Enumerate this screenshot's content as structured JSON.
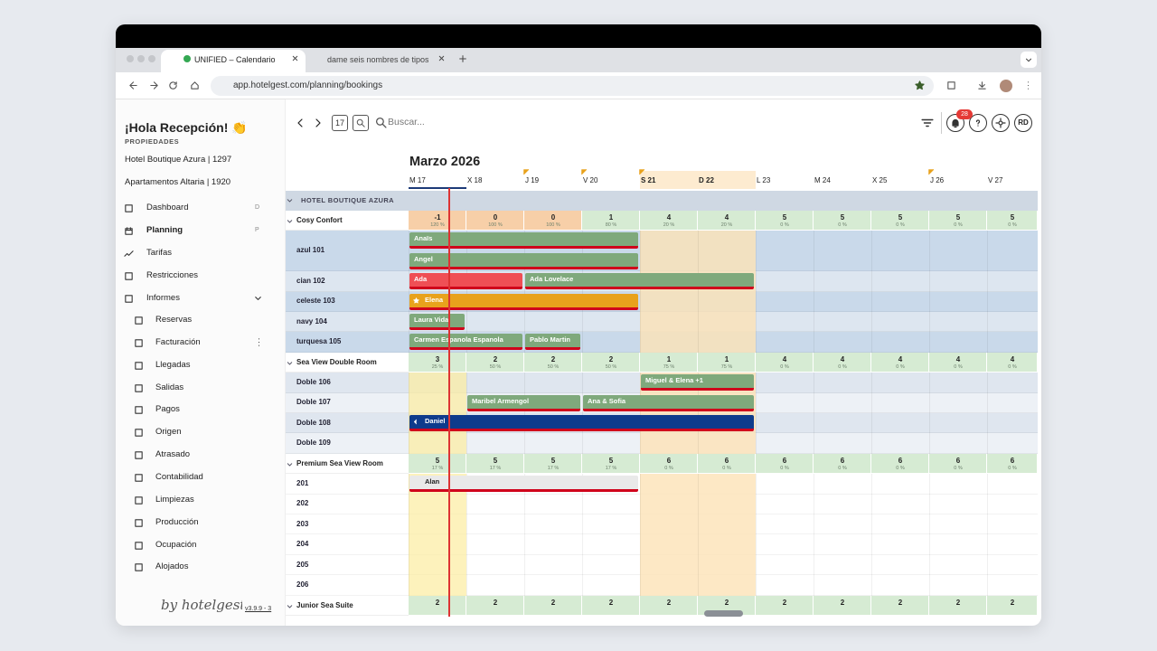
{
  "browser": {
    "tabs": [
      "UNIFIED – Calendario",
      "dame seis nombres de tipos"
    ],
    "url": "app.hotelgest.com/planning/bookings"
  },
  "sidebar": {
    "greeting": "¡Hola Recepción! 👏",
    "section": "PROPIEDADES",
    "properties": [
      "Hotel Boutique Azura | 1297",
      "Apartamentos Altaria | 1920"
    ],
    "nav": [
      {
        "label": "Dashboard",
        "shortcut": "D"
      },
      {
        "label": "Planning",
        "shortcut": "P"
      },
      {
        "label": "Tarifas"
      },
      {
        "label": "Restricciones"
      },
      {
        "label": "Informes"
      }
    ],
    "reports": [
      "Reservas",
      "Facturación",
      "Llegadas",
      "Salidas",
      "Pagos",
      "Origen",
      "Atrasado",
      "Contabilidad",
      "Limpiezas",
      "Producción",
      "Ocupación",
      "Alojados"
    ],
    "brand": "by hotelgest",
    "version": "v3.9.9 - 3"
  },
  "toolbar": {
    "today": 17,
    "search": "Buscar...",
    "notifications": 28,
    "user": "RD"
  },
  "calendar": {
    "month": "Marzo 2026",
    "days": [
      "M 17",
      "X 18",
      "J 19",
      "V 20",
      "S 21",
      "D 22",
      "L 23",
      "M 24",
      "X 25",
      "J 26",
      "V 27"
    ],
    "group": "HOTEL BOUTIQUE AZURA",
    "sections": [
      {
        "name": "Cosy Confort",
        "availability": [
          -1,
          0,
          0,
          1,
          4,
          4,
          5,
          5,
          5,
          5,
          5
        ],
        "occupancy": [
          "120 %",
          "100 %",
          "100 %",
          "80 %",
          "20 %",
          "20 %",
          "0 %",
          "0 %",
          "0 %",
          "0 %",
          "0 %"
        ],
        "rooms": [
          {
            "name": "azul 101",
            "bookings": [
              {
                "guest": "Anaïs",
                "color": "#7fa97c"
              },
              {
                "guest": "Angel",
                "color": "#7fa97c"
              }
            ]
          },
          {
            "name": "cian 102",
            "bookings": [
              {
                "guest": "Ada",
                "color": "#ef4f55"
              },
              {
                "guest": "Ada Lovelace",
                "color": "#7fa97c"
              }
            ]
          },
          {
            "name": "celeste 103",
            "bookings": [
              {
                "guest": "Elena",
                "color": "#e8a21c"
              }
            ]
          },
          {
            "name": "navy 104",
            "bookings": [
              {
                "guest": "Laura Vidal",
                "color": "#7fa97c"
              }
            ]
          },
          {
            "name": "turquesa 105",
            "bookings": [
              {
                "guest": "Carmen Espanola Espanola",
                "color": "#7fa97c"
              },
              {
                "guest": "Pablo Martin",
                "color": "#7fa97c"
              }
            ]
          }
        ]
      },
      {
        "name": "Sea View Double Room",
        "availability": [
          3,
          2,
          2,
          2,
          1,
          1,
          4,
          4,
          4,
          4,
          4
        ],
        "occupancy": [
          "25 %",
          "50 %",
          "50 %",
          "50 %",
          "75 %",
          "75 %",
          "0 %",
          "0 %",
          "0 %",
          "0 %",
          "0 %"
        ],
        "rooms": [
          {
            "name": "Doble 106",
            "bookings": [
              {
                "guest": "Miguel & Elena +1",
                "color": "#7fa97c"
              }
            ]
          },
          {
            "name": "Doble 107",
            "bookings": [
              {
                "guest": "Maribel Armengol",
                "color": "#7fa97c"
              },
              {
                "guest": "Ana & Sofia",
                "color": "#7fa97c"
              }
            ]
          },
          {
            "name": "Doble 108",
            "bookings": [
              {
                "guest": "Daniel",
                "color": "#0e3b8c"
              }
            ]
          },
          {
            "name": "Doble 109",
            "bookings": []
          }
        ]
      },
      {
        "name": "Premium Sea View Room",
        "availability": [
          5,
          5,
          5,
          5,
          6,
          6,
          6,
          6,
          6,
          6,
          6
        ],
        "occupancy": [
          "17 %",
          "17 %",
          "17 %",
          "17 %",
          "0 %",
          "0 %",
          "0 %",
          "0 %",
          "0 %",
          "0 %",
          "0 %"
        ],
        "rooms": [
          {
            "name": "201",
            "bookings": [
              {
                "guest": "Alan",
                "color": "#e9e9e9"
              }
            ]
          },
          {
            "name": "202",
            "bookings": []
          },
          {
            "name": "203",
            "bookings": []
          },
          {
            "name": "204",
            "bookings": []
          },
          {
            "name": "205",
            "bookings": []
          },
          {
            "name": "206",
            "bookings": []
          }
        ]
      },
      {
        "name": "Junior Sea Suite",
        "availability": [
          2,
          2,
          2,
          2,
          2,
          2,
          2,
          2,
          2,
          2,
          2
        ],
        "rooms": []
      }
    ]
  }
}
